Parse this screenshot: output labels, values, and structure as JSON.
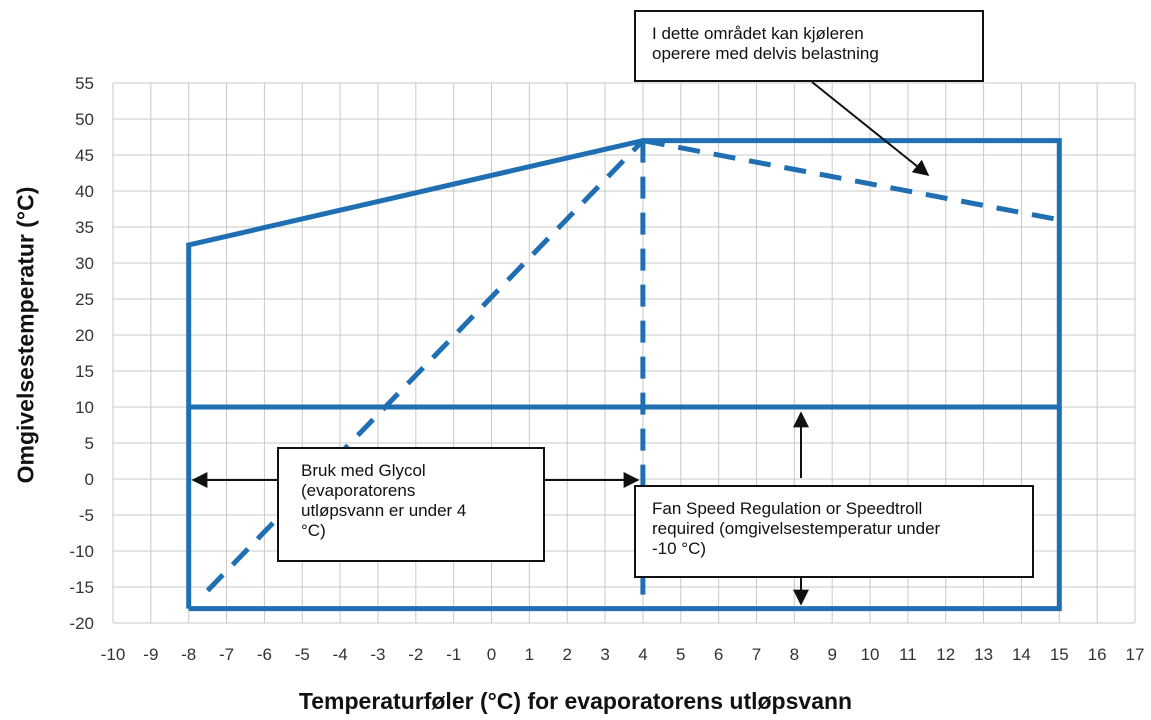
{
  "chart_data": {
    "type": "line",
    "title": "",
    "xlabel": "Temperaturføler (°C) for evaporatorens utløpsvann",
    "ylabel": "Omgivelsestemperatur (°C)",
    "xlim": [
      -10,
      17
    ],
    "ylim": [
      -20,
      55
    ],
    "x_ticks": [
      -10,
      -9,
      -8,
      -7,
      -6,
      -5,
      -4,
      -3,
      -2,
      -1,
      0,
      1,
      2,
      3,
      4,
      5,
      6,
      7,
      8,
      9,
      10,
      11,
      12,
      13,
      14,
      15,
      16,
      17
    ],
    "y_ticks": [
      -20,
      -15,
      -10,
      -5,
      0,
      5,
      10,
      15,
      20,
      25,
      30,
      35,
      40,
      45,
      50,
      55
    ],
    "grid": true,
    "series": [
      {
        "style": "solid",
        "color": "#1f6fb2",
        "points": [
          [
            -8,
            -18
          ],
          [
            -8,
            32.5
          ],
          [
            4,
            47
          ],
          [
            15,
            47
          ],
          [
            15,
            -18
          ],
          [
            -8,
            -18
          ]
        ]
      },
      {
        "style": "solid",
        "color": "#1f6fb2",
        "points": [
          [
            -8,
            10
          ],
          [
            15,
            10
          ]
        ]
      },
      {
        "style": "dashed",
        "color": "#1f6fb2",
        "points": [
          [
            -7.5,
            -15.5
          ],
          [
            4,
            47
          ]
        ]
      },
      {
        "style": "dashed",
        "color": "#1f6fb2",
        "points": [
          [
            4,
            47
          ],
          [
            4,
            -18
          ]
        ]
      },
      {
        "style": "dashed",
        "color": "#1f6fb2",
        "points": [
          [
            4,
            47
          ],
          [
            15,
            36
          ]
        ]
      }
    ],
    "annotations": [
      {
        "text_lines": [
          "I dette området kan kjøleren",
          "operere med delvis belastning"
        ]
      },
      {
        "text_lines": [
          "Bruk med Glycol",
          "(evaporatorens",
          "utløpsvann er under 4",
          "°C)"
        ]
      },
      {
        "text_lines": [
          "Fan Speed Regulation or Speedtroll",
          "required (omgivelsestemperatur under",
          "-10 °C)"
        ]
      }
    ]
  }
}
